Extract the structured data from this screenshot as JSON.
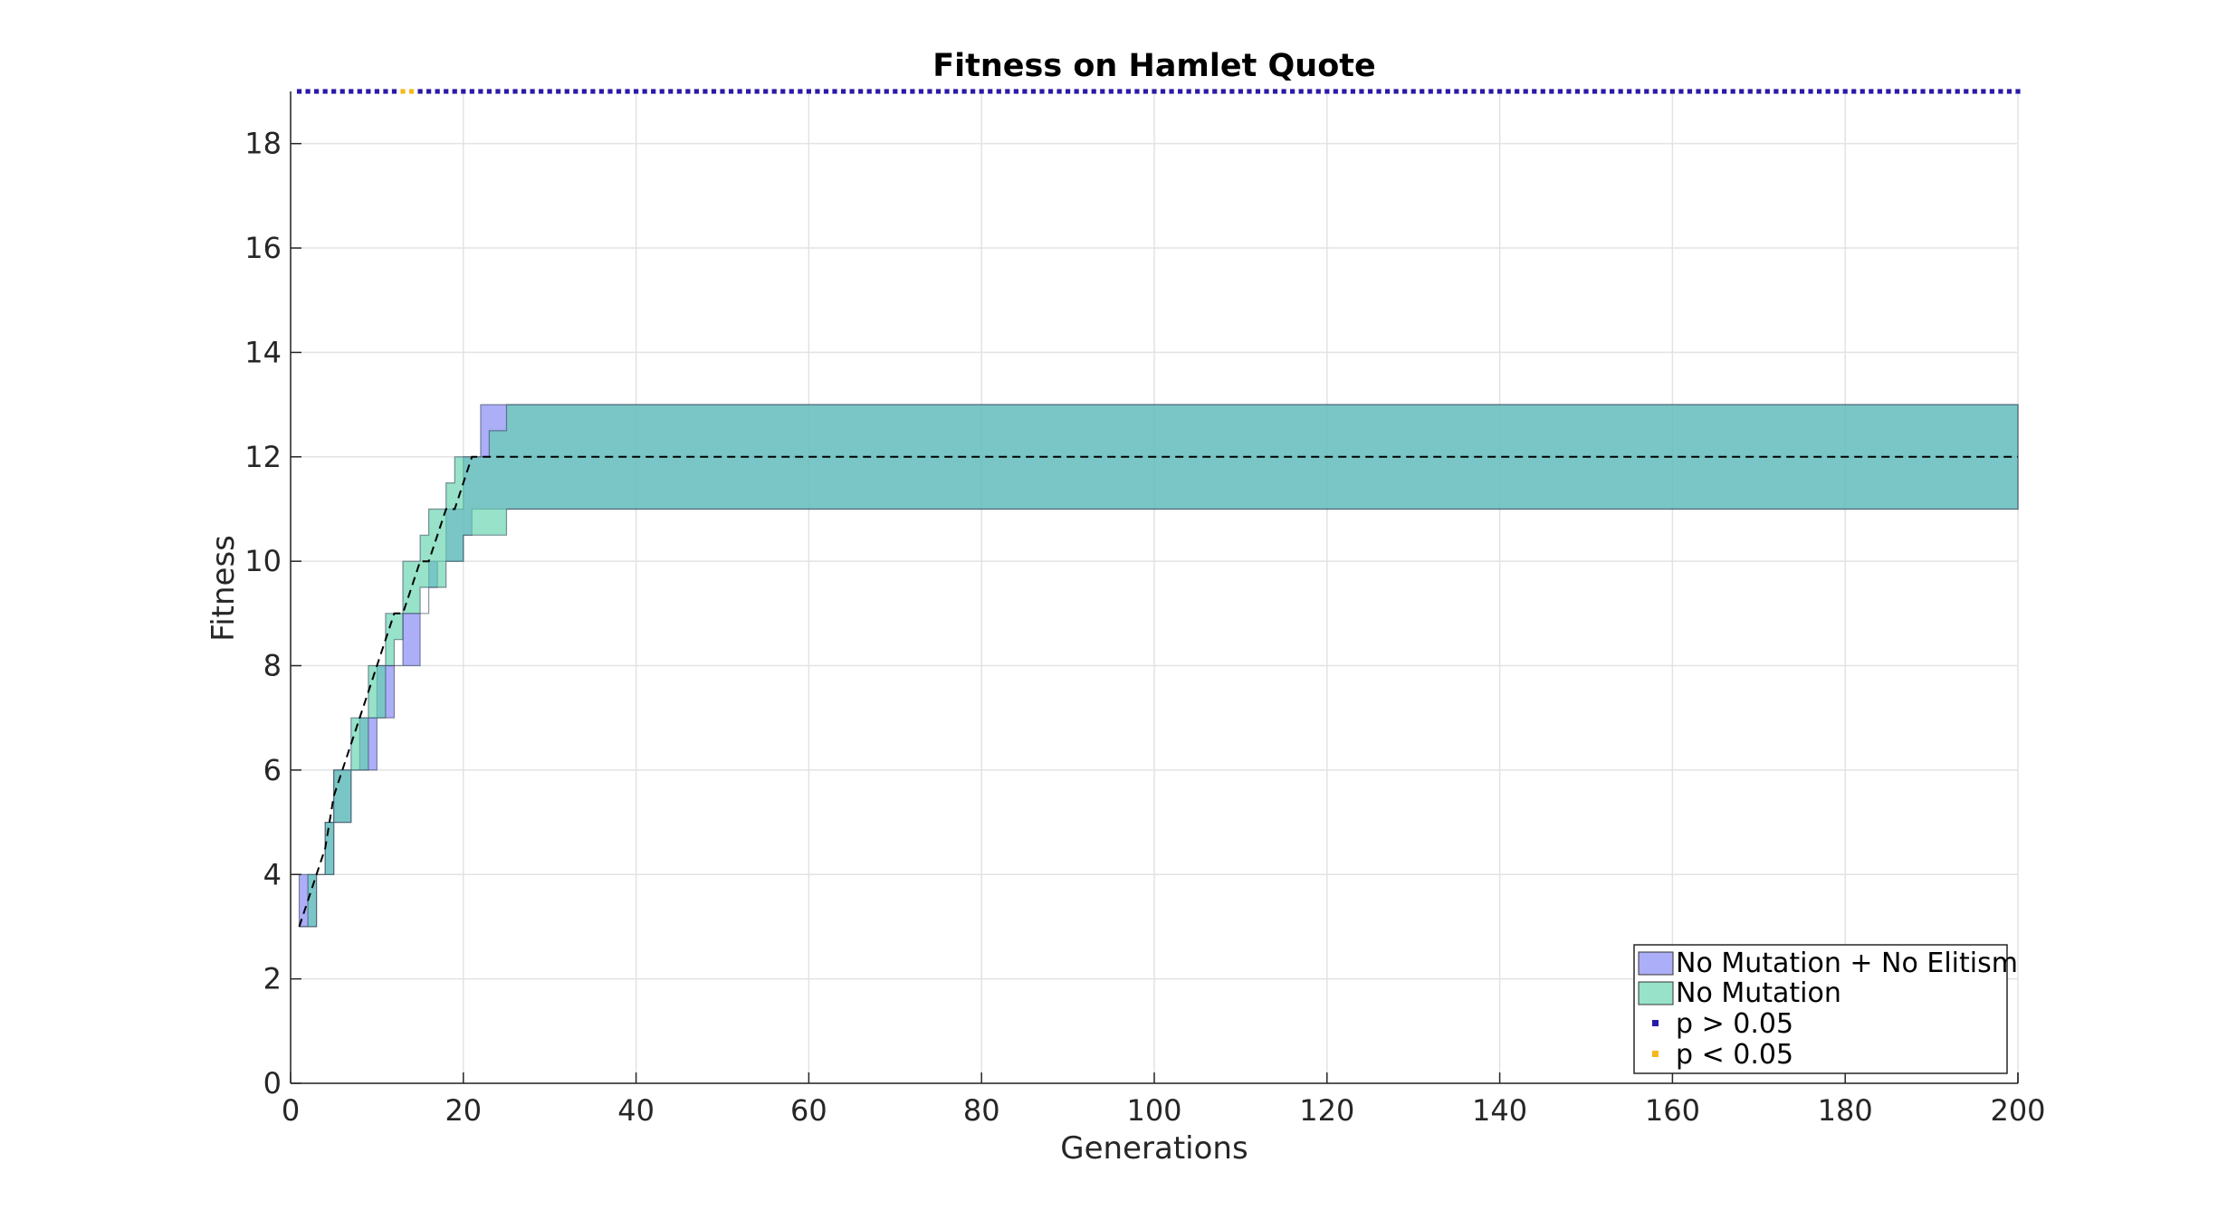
{
  "chart_data": {
    "type": "area",
    "title": "Fitness on Hamlet Quote",
    "xlabel": "Generations",
    "ylabel": "Fitness",
    "xlim": [
      0,
      200
    ],
    "ylim": [
      0,
      19
    ],
    "xticks": [
      0,
      20,
      40,
      60,
      80,
      100,
      120,
      140,
      160,
      180,
      200
    ],
    "yticks": [
      0,
      2,
      4,
      6,
      8,
      10,
      12,
      14,
      16,
      18
    ],
    "grid": true,
    "legend_placement": "bottom-right",
    "series": [
      {
        "name": "No Mutation + No Elitism",
        "kind": "band",
        "color": "#7f82f2",
        "x": [
          1,
          2,
          3,
          4,
          5,
          6,
          7,
          8,
          9,
          10,
          11,
          12,
          13,
          14,
          15,
          16,
          17,
          18,
          19,
          20,
          21,
          22,
          23,
          24,
          25,
          26,
          200
        ],
        "upper": [
          4,
          4,
          4,
          5,
          6,
          6,
          6,
          7,
          7,
          8,
          8,
          8,
          9,
          9,
          9,
          10,
          10,
          11,
          11,
          12,
          12,
          13,
          13,
          13,
          13,
          13,
          13
        ],
        "lower": [
          3,
          3,
          4,
          4,
          5,
          5,
          6,
          6,
          6,
          7,
          7,
          8,
          8,
          8,
          9,
          9.5,
          10,
          10,
          10,
          10.5,
          11,
          11,
          11,
          11,
          11,
          11,
          11
        ]
      },
      {
        "name": "No Mutation",
        "kind": "band",
        "color": "#5fd3ac",
        "x": [
          1,
          2,
          3,
          4,
          5,
          6,
          7,
          8,
          9,
          10,
          11,
          12,
          13,
          14,
          15,
          16,
          17,
          18,
          19,
          20,
          21,
          22,
          23,
          24,
          25,
          26,
          200
        ],
        "upper": [
          3,
          4,
          4,
          5,
          6,
          6,
          7,
          7,
          8,
          8,
          9,
          9,
          10,
          10,
          10.5,
          11,
          11,
          11.5,
          12,
          12,
          12,
          12,
          12.5,
          12.5,
          13,
          13,
          13
        ],
        "lower": [
          3,
          3,
          4,
          4,
          5,
          5,
          6,
          6,
          7,
          7,
          8,
          8.5,
          9,
          9,
          9.5,
          9.5,
          9.5,
          10,
          10,
          10.5,
          10.5,
          10.5,
          10.5,
          10.5,
          11,
          11,
          11
        ]
      }
    ],
    "median_line": {
      "style": "dashed",
      "color": "#000000",
      "x": [
        1,
        2,
        3,
        4,
        5,
        6,
        7,
        8,
        9,
        10,
        11,
        12,
        13,
        14,
        15,
        16,
        17,
        18,
        19,
        20,
        21,
        22,
        200
      ],
      "y": [
        3,
        3.5,
        4,
        4.5,
        5.5,
        6,
        6.5,
        7,
        7.5,
        8,
        8.5,
        9,
        9,
        9.5,
        10,
        10,
        10.5,
        11,
        11,
        11.5,
        12,
        12,
        12
      ]
    },
    "significance": {
      "y": 19,
      "p_gt_label": "p > 0.05",
      "p_lt_label": "p < 0.05",
      "p_gt_color": "#2a1aa8",
      "p_lt_color": "#f5b81c",
      "p_lt_x": [
        13,
        14
      ]
    }
  }
}
